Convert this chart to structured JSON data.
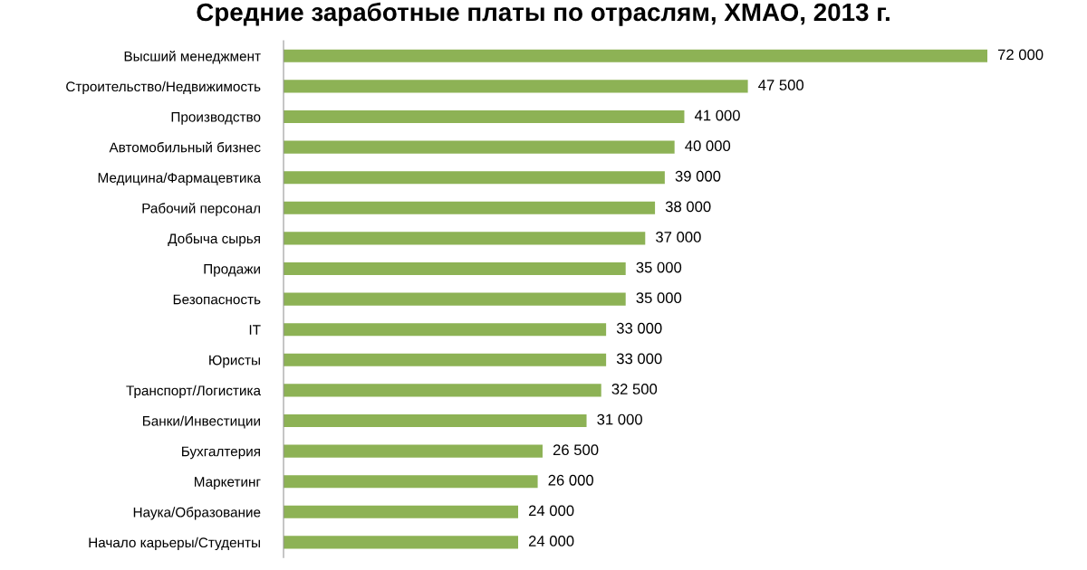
{
  "chart_data": {
    "type": "bar",
    "orientation": "horizontal",
    "title": "Средние заработные платы по отраслям, ХМАО, 2013 г.",
    "categories": [
      "Высший менеджмент",
      "Строительство/Недвижимость",
      "Производство",
      "Автомобильный бизнес",
      "Медицина/Фармацевтика",
      "Рабочий персонал",
      "Добыча сырья",
      "Продажи",
      "Безопасность",
      "IT",
      "Юристы",
      "Транспорт/Логистика",
      "Банки/Инвестиции",
      "Бухгалтерия",
      "Маркетинг",
      "Наука/Образование",
      "Начало карьеры/Студенты"
    ],
    "values": [
      72000,
      47500,
      41000,
      40000,
      39000,
      38000,
      37000,
      35000,
      35000,
      33000,
      33000,
      32500,
      31000,
      26500,
      26000,
      24000,
      24000
    ],
    "value_labels": [
      "72 000",
      "47 500",
      "41 000",
      "40 000",
      "39 000",
      "38 000",
      "37 000",
      "35 000",
      "35 000",
      "33 000",
      "33 000",
      "32 500",
      "31 000",
      "26 500",
      "26 000",
      "24 000",
      "24 000"
    ],
    "color": "#8db255",
    "xlim": [
      0,
      72000
    ],
    "grid": false
  }
}
